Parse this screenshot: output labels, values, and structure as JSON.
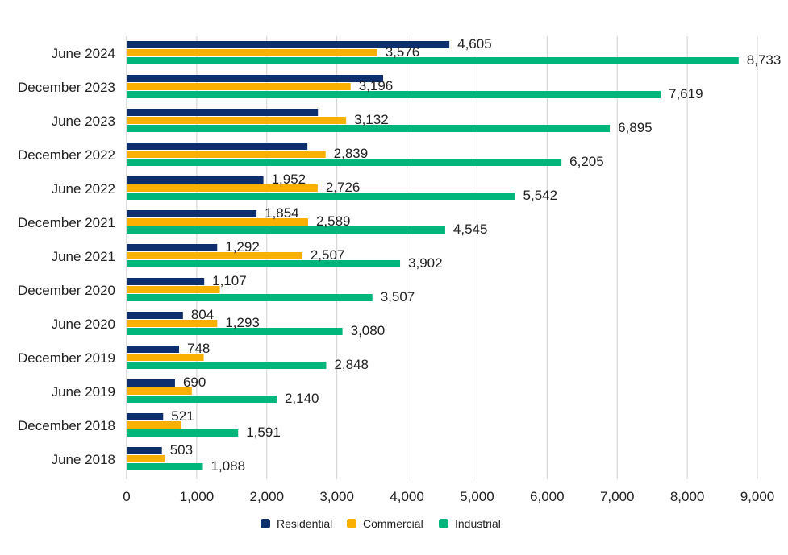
{
  "chart_data": {
    "type": "bar",
    "orientation": "horizontal",
    "categories": [
      "June 2024",
      "December 2023",
      "June 2023",
      "December 2022",
      "June 2022",
      "December 2021",
      "June 2021",
      "December 2020",
      "June 2020",
      "December 2019",
      "June 2019",
      "December 2018",
      "June 2018"
    ],
    "series": [
      {
        "name": "Residential",
        "color": "#0d2f6e",
        "values": [
          4605,
          3660,
          2730,
          2580,
          1952,
          1854,
          1292,
          1107,
          804,
          748,
          690,
          521,
          503
        ],
        "labels": [
          "4,605",
          "",
          "",
          "",
          "1,952",
          "1,854",
          "1,292",
          "1,107",
          "804",
          "748",
          "690",
          "521",
          "503"
        ]
      },
      {
        "name": "Commercial",
        "color": "#f9b000",
        "values": [
          3576,
          3196,
          3132,
          2839,
          2726,
          2589,
          2507,
          1330,
          1293,
          1100,
          930,
          780,
          540
        ],
        "labels": [
          "3,576",
          "3,196",
          "3,132",
          "2,839",
          "2,726",
          "2,589",
          "2,507",
          "",
          "1,293",
          "",
          "",
          "",
          ""
        ]
      },
      {
        "name": "Industrial",
        "color": "#00b67a",
        "values": [
          8733,
          7619,
          6895,
          6205,
          5542,
          4545,
          3902,
          3507,
          3080,
          2848,
          2140,
          1591,
          1088
        ],
        "labels": [
          "8,733",
          "7,619",
          "6,895",
          "6,205",
          "5,542",
          "4,545",
          "3,902",
          "3,507",
          "3,080",
          "2,848",
          "2,140",
          "1,591",
          "1,088"
        ]
      }
    ],
    "xlim": [
      0,
      9000
    ],
    "xticks": [
      0,
      1000,
      2000,
      3000,
      4000,
      5000,
      6000,
      7000,
      8000,
      9000
    ],
    "xtick_labels": [
      "0",
      "1,000",
      "2,000",
      "3,000",
      "4,000",
      "5,000",
      "6,000",
      "7,000",
      "8,000",
      "9,000"
    ],
    "grid": "vertical",
    "legend_position": "bottom-center",
    "title": "",
    "xlabel": "",
    "ylabel": ""
  }
}
